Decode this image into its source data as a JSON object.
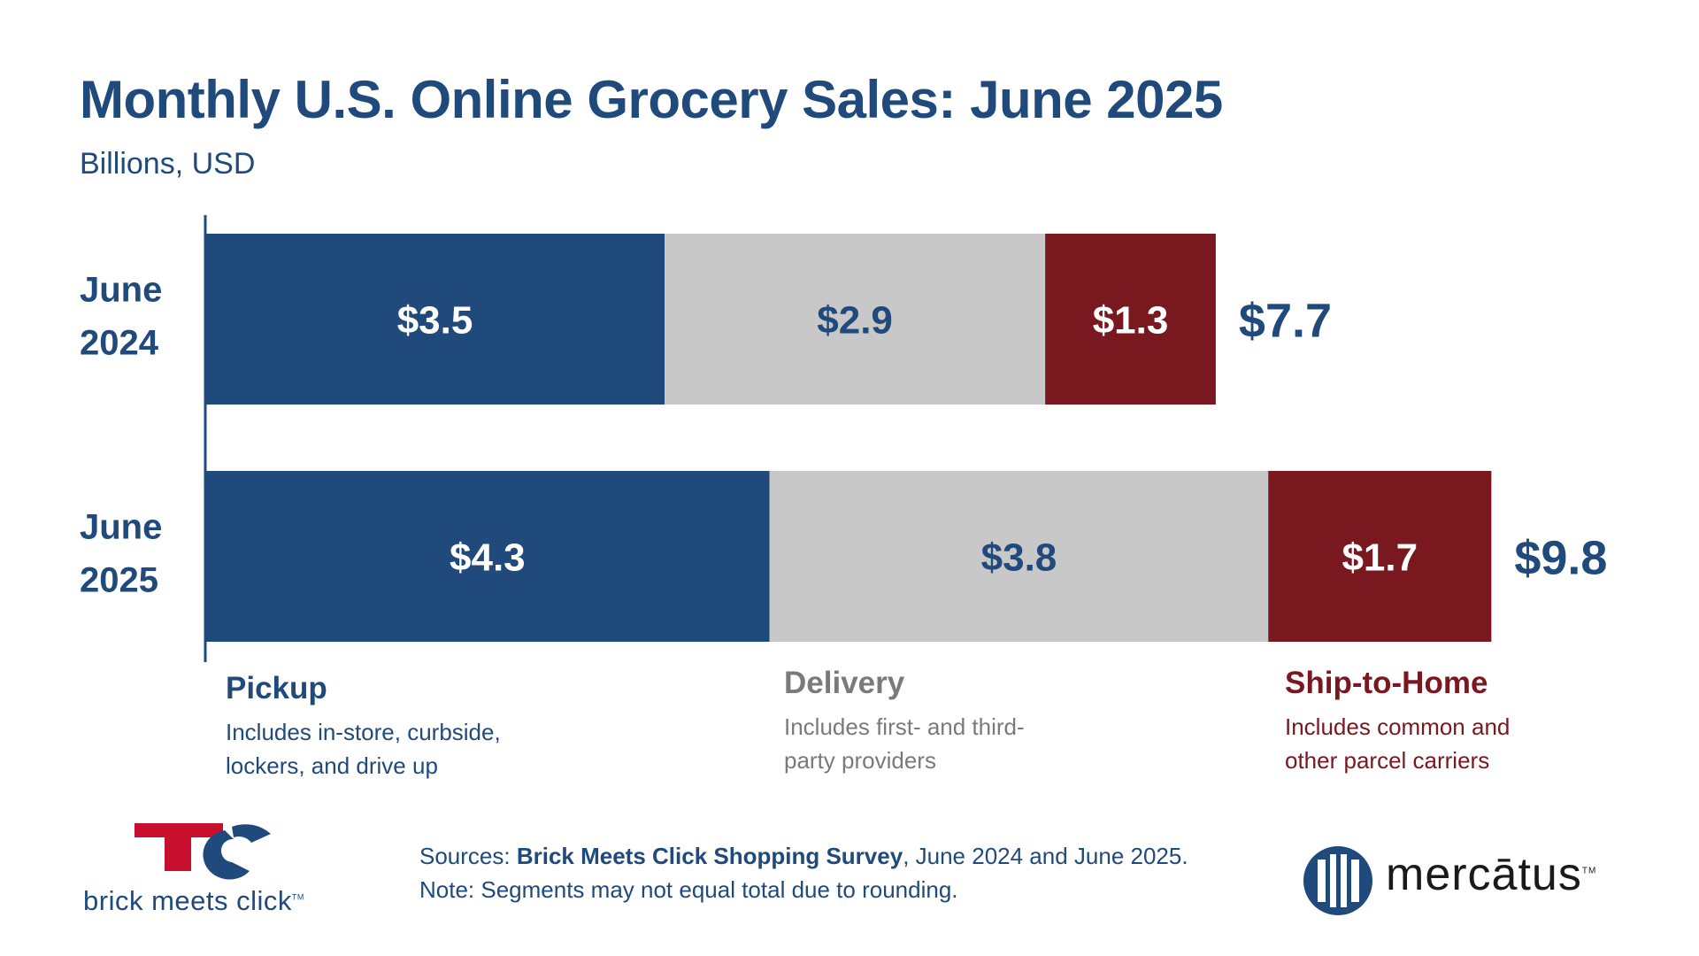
{
  "chart_data": {
    "type": "bar",
    "orientation": "horizontal",
    "stacked": true,
    "title": "Monthly U.S. Online Grocery Sales: June 2025",
    "subtitle": "Billions, USD",
    "categories": [
      {
        "line1": "June",
        "line2": "2024"
      },
      {
        "line1": "June",
        "line2": "2025"
      }
    ],
    "series": [
      {
        "name": "Pickup",
        "description": "Includes in-store, curbside, lockers, and drive up",
        "color": "#1f4a7b",
        "label_color": "#ffffff",
        "values": [
          3.5,
          4.3
        ],
        "labels": [
          "$3.5",
          "$4.3"
        ]
      },
      {
        "name": "Delivery",
        "description": "Includes first- and third-party providers",
        "color": "#c8c8c8",
        "label_color": "#1f4a7b",
        "values": [
          2.9,
          3.8
        ],
        "labels": [
          "$2.9",
          "$3.8"
        ]
      },
      {
        "name": "Ship-to-Home",
        "description": "Includes common and other parcel carriers",
        "color": "#7a1820",
        "label_color": "#ffffff",
        "values": [
          1.3,
          1.7
        ],
        "labels": [
          "$1.3",
          "$1.7"
        ]
      }
    ],
    "totals": [
      7.7,
      9.8
    ],
    "total_labels": [
      "$7.7",
      "$9.8"
    ],
    "xlim": [
      0,
      9.8
    ],
    "grid": false,
    "legend_placement": "bottom"
  },
  "legend": {
    "pickup": {
      "name": "Pickup",
      "desc_line1": "Includes in-store, curbside,",
      "desc_line2": "lockers, and drive up"
    },
    "delivery": {
      "name": "Delivery",
      "desc_line1": "Includes first- and third-",
      "desc_line2": "party providers"
    },
    "ship": {
      "name": "Ship-to-Home",
      "desc_line1": "Includes common and",
      "desc_line2": "other parcel carriers"
    }
  },
  "footer": {
    "sources_prefix": "Sources: ",
    "sources_bold": "Brick Meets Click Shopping Survey",
    "sources_suffix": ", June 2024 and June 2025.",
    "note": "Note: Segments may not equal total due to rounding."
  },
  "logos": {
    "brick_meets_click": {
      "text": "brick meets click",
      "tm": "TM",
      "colors": [
        "#c8102e",
        "#1f4a7b"
      ]
    },
    "mercatus": {
      "text": "mercātus",
      "tm": "TM",
      "color": "#1f4a7b"
    }
  }
}
